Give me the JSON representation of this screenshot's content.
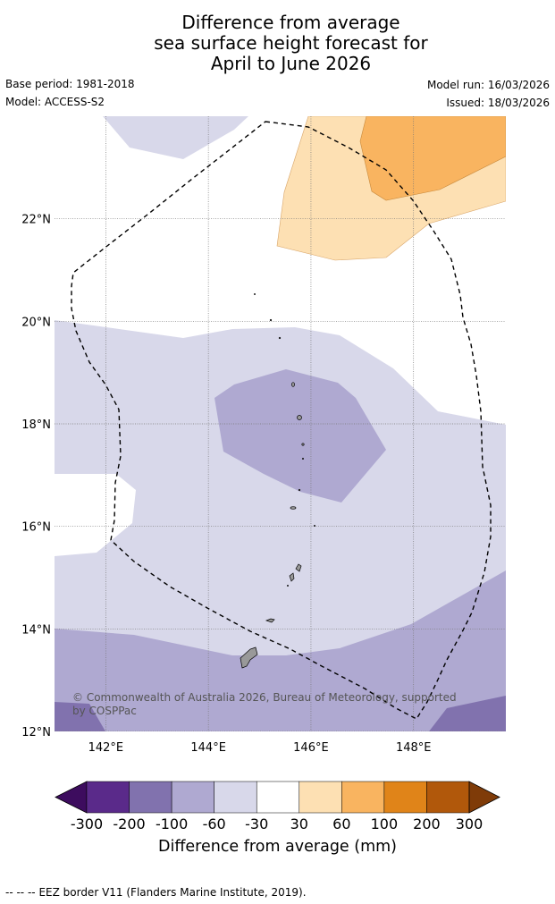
{
  "title": {
    "line1": "Difference from average",
    "line2": "sea surface height forecast for",
    "line3": "April to June 2026"
  },
  "meta": {
    "base_period": "Base period: 1981-2018",
    "model": "Model: ACCESS-S2",
    "model_run": "Model run: 16/03/2026",
    "issued": "Issued: 18/03/2026"
  },
  "map": {
    "lat_labels": [
      "22°N",
      "20°N",
      "18°N",
      "16°N",
      "14°N",
      "12°N"
    ],
    "lon_labels": [
      "142°E",
      "144°E",
      "146°E",
      "148°E"
    ],
    "lat_values": [
      22,
      20,
      18,
      16,
      14,
      12
    ],
    "lon_values": [
      142,
      144,
      146,
      148
    ],
    "lon_range": [
      141,
      149.8
    ],
    "lat_range": [
      12,
      24
    ],
    "copyright": "© Commonwealth of Australia 2026, Bureau of Meteorology, supported by COSPPac"
  },
  "colorbar": {
    "colors": [
      "#3d0c5e",
      "#5a2a8a",
      "#8172ae",
      "#afa9d1",
      "#d8d8ea",
      "#ffffff",
      "#fde0b3",
      "#f9b460",
      "#e08419",
      "#b1580b",
      "#7f3b08"
    ],
    "tick_labels": [
      "-300",
      "-200",
      "-100",
      "-60",
      "-30",
      "30",
      "60",
      "100",
      "200",
      "300"
    ],
    "label": "Difference from average (mm)"
  },
  "legend": {
    "eez_symbol": "--  --  --",
    "eez_text": "EEZ border V11 (Flanders Marine Institute, 2019)."
  }
}
